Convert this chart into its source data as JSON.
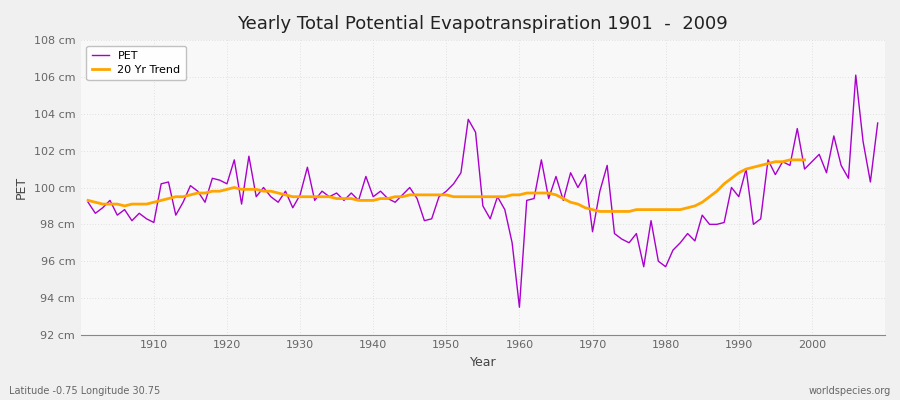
{
  "title": "Yearly Total Potential Evapotranspiration 1901  -  2009",
  "xlabel": "Year",
  "ylabel": "PET",
  "subtitle_left": "Latitude -0.75 Longitude 30.75",
  "subtitle_right": "worldspecies.org",
  "pet_color": "#AA00CC",
  "trend_color": "#FFA500",
  "background_color": "#f0f0f0",
  "plot_bg_color": "#f8f8f8",
  "grid_color": "#cccccc",
  "ylim": [
    92,
    108
  ],
  "yticks": [
    92,
    94,
    96,
    98,
    100,
    102,
    104,
    106,
    108
  ],
  "ytick_labels": [
    "92 cm",
    "94 cm",
    "96 cm",
    "98 cm",
    "100 cm",
    "102 cm",
    "104 cm",
    "106 cm",
    "108 cm"
  ],
  "years": [
    1901,
    1902,
    1903,
    1904,
    1905,
    1906,
    1907,
    1908,
    1909,
    1910,
    1911,
    1912,
    1913,
    1914,
    1915,
    1916,
    1917,
    1918,
    1919,
    1920,
    1921,
    1922,
    1923,
    1924,
    1925,
    1926,
    1927,
    1928,
    1929,
    1930,
    1931,
    1932,
    1933,
    1934,
    1935,
    1936,
    1937,
    1938,
    1939,
    1940,
    1941,
    1942,
    1943,
    1944,
    1945,
    1946,
    1947,
    1948,
    1949,
    1950,
    1951,
    1952,
    1953,
    1954,
    1955,
    1956,
    1957,
    1958,
    1959,
    1960,
    1961,
    1962,
    1963,
    1964,
    1965,
    1966,
    1967,
    1968,
    1969,
    1970,
    1971,
    1972,
    1973,
    1974,
    1975,
    1976,
    1977,
    1978,
    1979,
    1980,
    1981,
    1982,
    1983,
    1984,
    1985,
    1986,
    1987,
    1988,
    1989,
    1990,
    1991,
    1992,
    1993,
    1994,
    1995,
    1996,
    1997,
    1998,
    1999,
    2000,
    2001,
    2002,
    2003,
    2004,
    2005,
    2006,
    2007,
    2008,
    2009
  ],
  "pet_values": [
    99.2,
    98.6,
    98.9,
    99.3,
    98.5,
    98.8,
    98.2,
    98.6,
    98.3,
    98.1,
    100.2,
    100.3,
    98.5,
    99.2,
    100.1,
    99.8,
    99.2,
    100.5,
    100.4,
    100.2,
    101.5,
    99.1,
    101.7,
    99.5,
    100.0,
    99.5,
    99.2,
    99.8,
    98.9,
    99.6,
    101.1,
    99.3,
    99.8,
    99.5,
    99.7,
    99.3,
    99.7,
    99.3,
    100.6,
    99.5,
    99.8,
    99.4,
    99.2,
    99.6,
    100.0,
    99.4,
    98.2,
    98.3,
    99.5,
    99.8,
    100.2,
    100.8,
    103.7,
    103.0,
    99.0,
    98.3,
    99.5,
    98.8,
    97.0,
    93.5,
    99.3,
    99.4,
    101.5,
    99.4,
    100.6,
    99.3,
    100.8,
    100.0,
    100.7,
    97.6,
    99.8,
    101.2,
    97.5,
    97.2,
    97.0,
    97.5,
    95.7,
    98.2,
    96.0,
    95.7,
    96.6,
    97.0,
    97.5,
    97.1,
    98.5,
    98.0,
    98.0,
    98.1,
    100.0,
    99.5,
    101.0,
    98.0,
    98.3,
    101.5,
    100.7,
    101.4,
    101.2,
    103.2,
    101.0,
    101.4,
    101.8,
    100.8,
    102.8,
    101.2,
    100.5,
    106.1,
    102.5,
    100.3,
    103.5
  ],
  "trend_values": [
    99.3,
    99.2,
    99.1,
    99.1,
    99.1,
    99.0,
    99.1,
    99.1,
    99.1,
    99.2,
    99.3,
    99.4,
    99.5,
    99.5,
    99.6,
    99.7,
    99.7,
    99.8,
    99.8,
    99.9,
    100.0,
    99.9,
    99.9,
    99.9,
    99.8,
    99.8,
    99.7,
    99.6,
    99.5,
    99.5,
    99.5,
    99.5,
    99.5,
    99.5,
    99.4,
    99.4,
    99.4,
    99.3,
    99.3,
    99.3,
    99.4,
    99.4,
    99.5,
    99.5,
    99.6,
    99.6,
    99.6,
    99.6,
    99.6,
    99.6,
    99.5,
    99.5,
    99.5,
    99.5,
    99.5,
    99.5,
    99.5,
    99.5,
    99.6,
    99.6,
    99.7,
    99.7,
    99.7,
    99.7,
    99.6,
    99.4,
    99.2,
    99.1,
    98.9,
    98.8,
    98.7,
    98.7,
    98.7,
    98.7,
    98.7,
    98.8,
    98.8,
    98.8,
    98.8,
    98.8,
    98.8,
    98.8,
    98.9,
    99.0,
    99.2,
    99.5,
    99.8,
    100.2,
    100.5,
    100.8,
    101.0,
    101.1,
    101.2,
    101.3,
    101.4,
    101.4,
    101.5,
    101.5,
    101.5
  ],
  "legend_pet_label": "PET",
  "legend_trend_label": "20 Yr Trend",
  "title_fontsize": 13,
  "axis_label_fontsize": 9,
  "tick_fontsize": 8
}
